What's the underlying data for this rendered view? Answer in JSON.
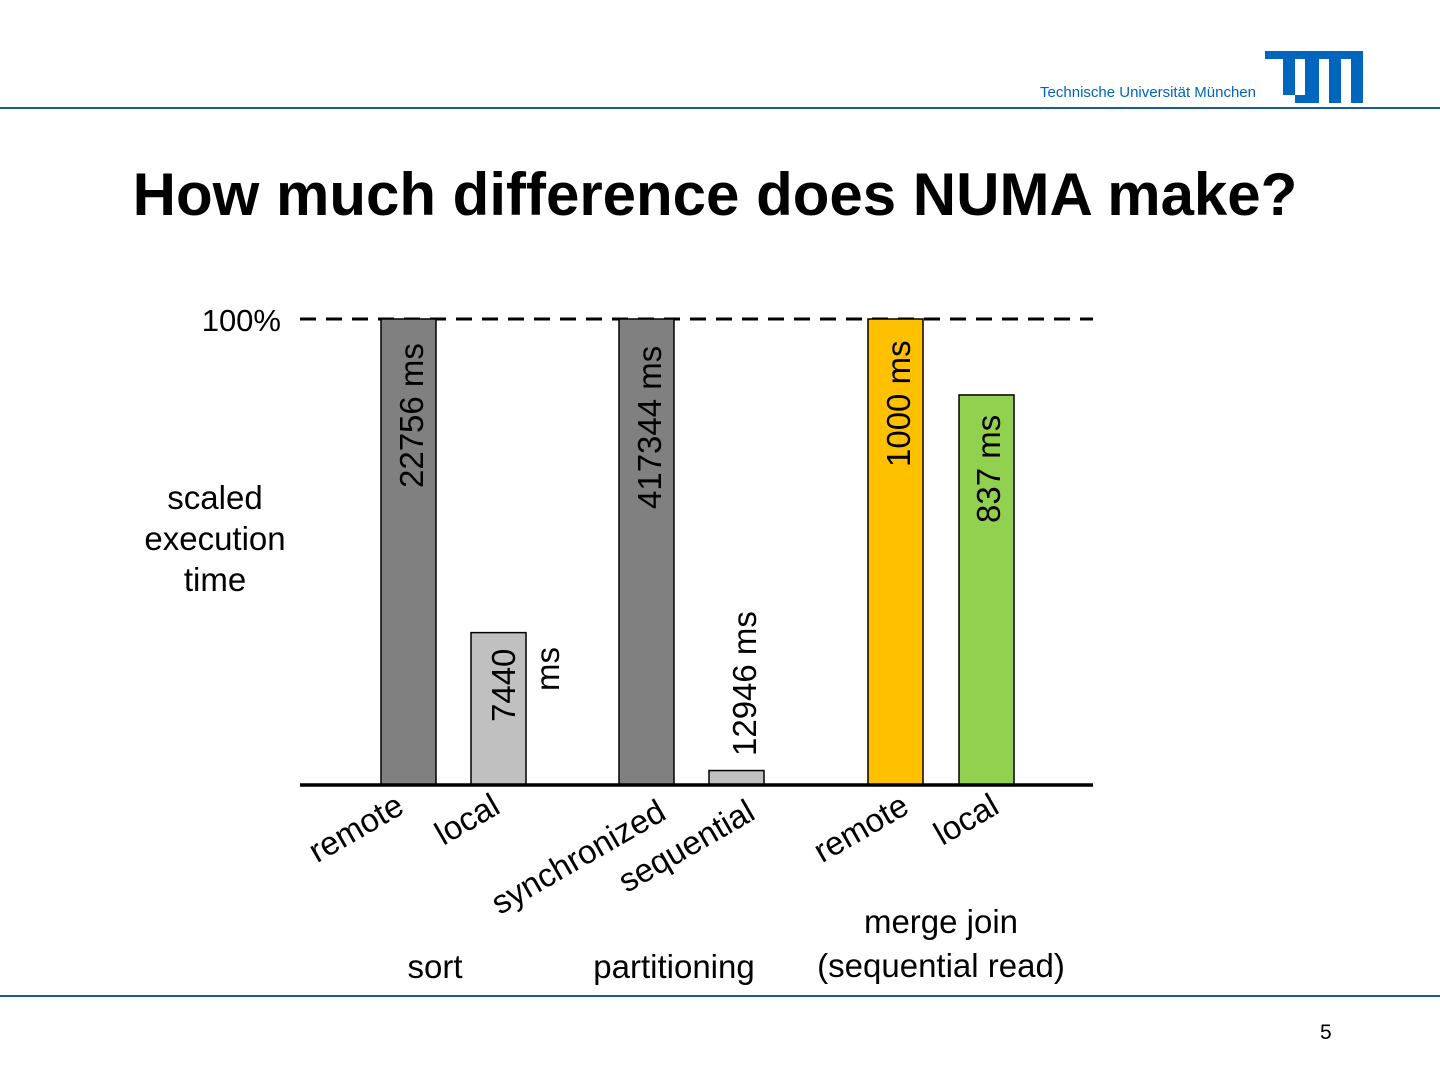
{
  "header": {
    "university": "Technische Universität München",
    "logo_alt": "TUM",
    "brand_color": "#0065bd"
  },
  "slide": {
    "title": "How much difference does NUMA make?",
    "page_number": "5"
  },
  "chart_data": {
    "type": "bar",
    "reference_line": {
      "label": "100%",
      "value": 1.0,
      "style": "dashed"
    },
    "ylabel": [
      "scaled",
      "execution",
      "time"
    ],
    "ylim": [
      0,
      1
    ],
    "groups": [
      {
        "name": "sort",
        "name_lines": [
          "sort"
        ]
      },
      {
        "name": "partitioning",
        "name_lines": [
          "partitioning"
        ]
      },
      {
        "name": "merge join (sequential read)",
        "name_lines": [
          "merge join",
          "(sequential read)"
        ]
      }
    ],
    "bars": [
      {
        "group": "sort",
        "category": "remote",
        "scaled_value": 1.0,
        "label": "22756 ms",
        "color": "#808080"
      },
      {
        "group": "sort",
        "category": "local",
        "scaled_value": 0.327,
        "label_lines": [
          "7440",
          "ms"
        ],
        "color": "#c0c0c0"
      },
      {
        "group": "partitioning",
        "category": "synchronized",
        "scaled_value": 1.0,
        "label": "417344 ms",
        "color": "#808080"
      },
      {
        "group": "partitioning",
        "category": "sequential",
        "scaled_value": 0.031,
        "label": "12946 ms",
        "color": "#c0c0c0"
      },
      {
        "group": "merge join (sequential read)",
        "category": "remote",
        "scaled_value": 1.0,
        "label": "1000 ms",
        "color": "#ffc000"
      },
      {
        "group": "merge join (sequential read)",
        "category": "local",
        "scaled_value": 0.837,
        "label": "837 ms",
        "color": "#92d050"
      }
    ]
  }
}
